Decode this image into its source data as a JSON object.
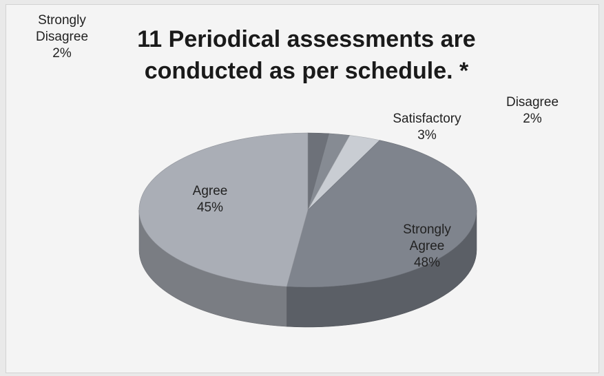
{
  "chart_data": {
    "type": "pie3d",
    "title": "11 Periodical assessments are conducted as per schedule. *",
    "categories": [
      "Strongly Disagree",
      "Disagree",
      "Satisfactory",
      "Agree",
      "Strongly Agree"
    ],
    "values": [
      2,
      2,
      3,
      45,
      48
    ],
    "value_labels": [
      "2%",
      "2%",
      "3%",
      "45%",
      "48%"
    ],
    "colors": [
      "#6d7179",
      "#868b93",
      "#c9cdd3",
      "#7f848d",
      "#aaaeb6"
    ]
  }
}
